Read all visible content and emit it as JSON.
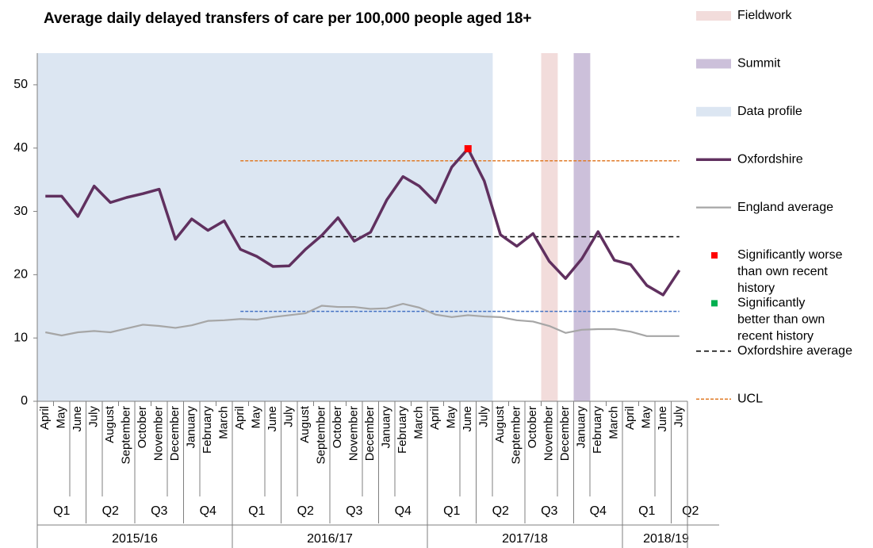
{
  "chart_data": {
    "type": "line",
    "title": "Average daily delayed transfers of care per 100,000 people aged 18+",
    "categories": [
      "April",
      "May",
      "June",
      "July",
      "August",
      "September",
      "October",
      "November",
      "December",
      "January",
      "February",
      "March",
      "April",
      "May",
      "June",
      "July",
      "August",
      "September",
      "October",
      "November",
      "December",
      "January",
      "February",
      "March",
      "April",
      "May",
      "June",
      "July",
      "August",
      "September",
      "October",
      "November",
      "December",
      "January",
      "February",
      "March",
      "April",
      "May",
      "June",
      "July"
    ],
    "quarters": [
      "Q1",
      "Q2",
      "Q3",
      "Q4",
      "Q1",
      "Q2",
      "Q3",
      "Q4",
      "Q1",
      "Q2",
      "Q3",
      "Q4",
      "Q1",
      "Q2"
    ],
    "years": [
      "2015/16",
      "2016/17",
      "2017/18",
      "2018/19"
    ],
    "ylim": [
      0,
      55
    ],
    "yticks": [
      0,
      10,
      20,
      30,
      40,
      50
    ],
    "series": [
      {
        "name": "Fieldwork",
        "type": "bar",
        "color": "#f2dcdb",
        "values": [
          null,
          null,
          null,
          null,
          null,
          null,
          null,
          null,
          null,
          null,
          null,
          null,
          null,
          null,
          null,
          null,
          null,
          null,
          null,
          null,
          null,
          null,
          null,
          null,
          null,
          null,
          null,
          null,
          null,
          null,
          null,
          55,
          null,
          null,
          null,
          null,
          null,
          null,
          null,
          null
        ]
      },
      {
        "name": "Summit",
        "type": "bar",
        "color": "#ccc0da",
        "values": [
          null,
          null,
          null,
          null,
          null,
          null,
          null,
          null,
          null,
          null,
          null,
          null,
          null,
          null,
          null,
          null,
          null,
          null,
          null,
          null,
          null,
          null,
          null,
          null,
          null,
          null,
          null,
          null,
          null,
          null,
          null,
          null,
          null,
          55,
          null,
          null,
          null,
          null,
          null,
          null
        ]
      },
      {
        "name": "Data profile",
        "type": "bar",
        "color": "#dce6f2",
        "values": [
          55,
          55,
          55,
          55,
          55,
          55,
          55,
          55,
          55,
          55,
          55,
          55,
          55,
          55,
          55,
          55,
          55,
          55,
          55,
          55,
          55,
          55,
          55,
          55,
          55,
          55,
          55,
          55,
          null,
          null,
          null,
          null,
          null,
          null,
          null,
          null,
          null,
          null,
          null,
          null
        ]
      },
      {
        "name": "Oxfordshire",
        "type": "line",
        "color": "#60305f",
        "values": [
          32.4,
          32.4,
          29.2,
          34,
          31.4,
          32.2,
          32.8,
          33.5,
          25.6,
          28.8,
          27,
          28.5,
          24,
          22.9,
          21.3,
          21.4,
          24,
          26.2,
          29,
          25.3,
          26.7,
          31.8,
          35.5,
          34,
          31.4,
          37,
          39.9,
          34.8,
          26.3,
          24.5,
          26.5,
          22.1,
          19.4,
          22.5,
          26.8,
          22.3,
          21.6,
          18.3,
          16.8,
          20.7
        ]
      },
      {
        "name": "England average",
        "type": "thin",
        "color": "#a6a6a6",
        "values": [
          10.9,
          10.4,
          10.9,
          11.1,
          10.9,
          11.5,
          12.1,
          11.9,
          11.6,
          12,
          12.7,
          12.8,
          13,
          12.9,
          13.3,
          13.6,
          13.9,
          15.1,
          14.9,
          14.9,
          14.6,
          14.7,
          15.4,
          14.8,
          13.7,
          13.3,
          13.6,
          13.4,
          13.3,
          12.8,
          12.6,
          11.9,
          10.8,
          11.3,
          11.4,
          11.4,
          11,
          10.3,
          10.3,
          10.3
        ]
      },
      {
        "name": "Significantly worse than own recent history",
        "type": "marker",
        "color": "#ff0000",
        "values": [
          null,
          null,
          null,
          null,
          null,
          null,
          null,
          null,
          null,
          null,
          null,
          null,
          null,
          null,
          null,
          null,
          null,
          null,
          null,
          null,
          null,
          null,
          null,
          null,
          null,
          null,
          39.9,
          null,
          null,
          null,
          null,
          null,
          null,
          null,
          null,
          null,
          null,
          null,
          null,
          null
        ]
      },
      {
        "name": "Significantly better than own recent history",
        "type": "marker",
        "color": "#00b050",
        "values": [
          null,
          null,
          null,
          null,
          null,
          null,
          null,
          null,
          null,
          null,
          null,
          null,
          null,
          null,
          null,
          null,
          null,
          null,
          null,
          null,
          null,
          null,
          null,
          null,
          null,
          null,
          null,
          null,
          null,
          null,
          null,
          null,
          null,
          null,
          null,
          null,
          null,
          null,
          null,
          null
        ]
      },
      {
        "name": "Oxfordshire average",
        "type": "dashed",
        "color": "#000000",
        "values": [
          null,
          null,
          null,
          null,
          null,
          null,
          null,
          null,
          null,
          null,
          null,
          null,
          26,
          26,
          26,
          26,
          26,
          26,
          26,
          26,
          26,
          26,
          26,
          26,
          26,
          26,
          26,
          26,
          26,
          26,
          26,
          26,
          26,
          26,
          26,
          26,
          26,
          26,
          26,
          26
        ]
      },
      {
        "name": "UCL",
        "type": "dashed",
        "color": "#e07b28",
        "values": [
          null,
          null,
          null,
          null,
          null,
          null,
          null,
          null,
          null,
          null,
          null,
          null,
          38,
          38,
          38,
          38,
          38,
          38,
          38,
          38,
          38,
          38,
          38,
          38,
          38,
          38,
          38,
          38,
          38,
          38,
          38,
          38,
          38,
          38,
          38,
          38,
          38,
          38,
          38,
          38
        ]
      },
      {
        "type": "dashed",
        "color": "#4472c4",
        "values": [
          null,
          null,
          null,
          null,
          null,
          null,
          null,
          null,
          null,
          null,
          null,
          null,
          14.2,
          14.2,
          14.2,
          14.2,
          14.2,
          14.2,
          14.2,
          14.2,
          14.2,
          14.2,
          14.2,
          14.2,
          14.2,
          14.2,
          14.2,
          14.2,
          14.2,
          14.2,
          14.2,
          14.2,
          14.2,
          14.2,
          14.2,
          14.2,
          14.2,
          14.2,
          14.2,
          14.2
        ]
      }
    ]
  }
}
